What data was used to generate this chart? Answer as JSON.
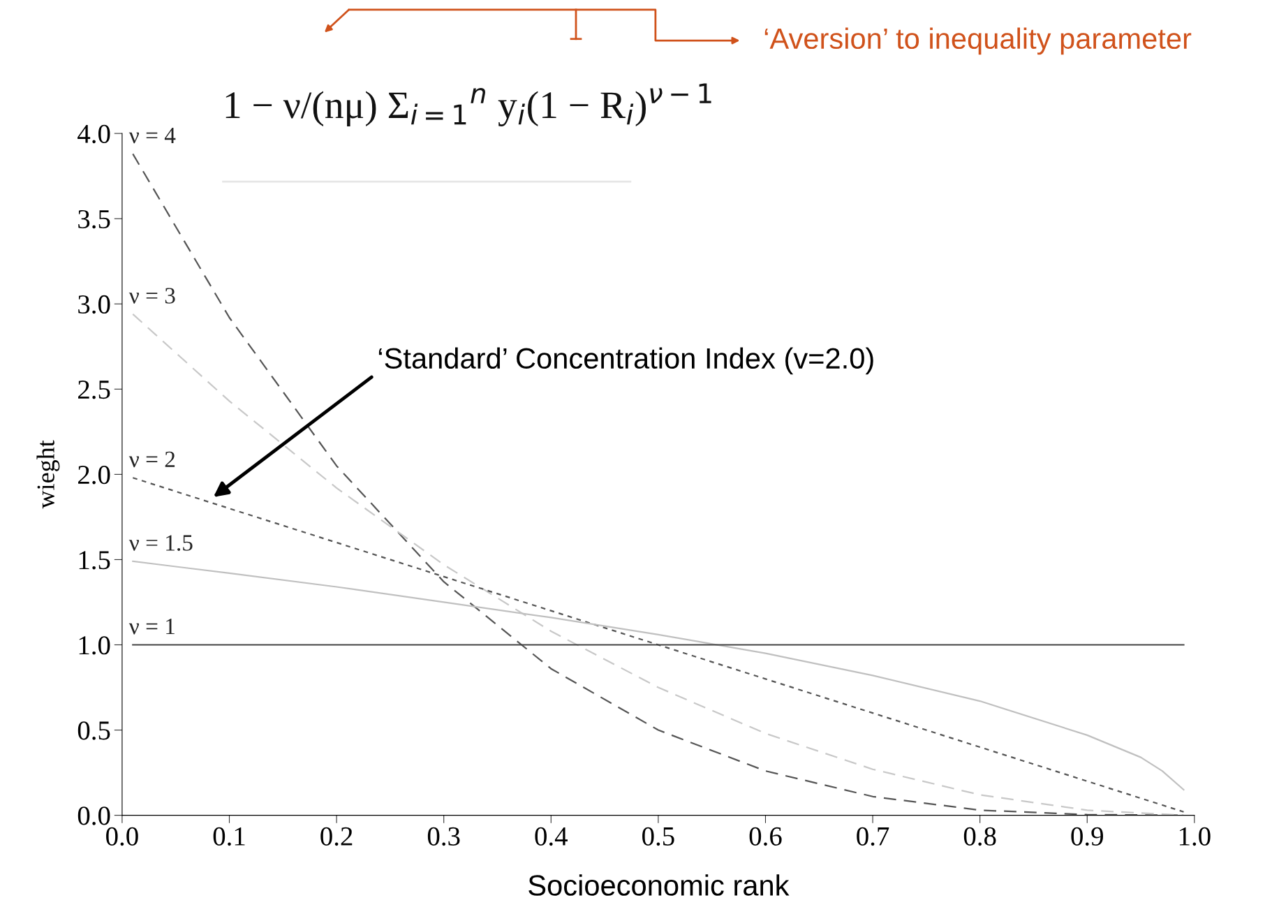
{
  "chart_data": {
    "type": "line",
    "xlabel": "Socioeconomic rank",
    "ylabel": "wieght",
    "xlim": [
      0.0,
      1.0
    ],
    "ylim": [
      0.0,
      4.0
    ],
    "xticks": [
      {
        "value": 0,
        "label": "0.0"
      },
      0.1,
      0.2,
      0.3,
      0.4,
      0.5,
      0.6,
      0.7,
      0.8,
      0.9,
      {
        "value": 1,
        "label": "1.0"
      }
    ],
    "yticks": [
      {
        "value": 0,
        "label": "0.0"
      },
      0.5,
      {
        "value": 1,
        "label": "1.0"
      },
      1.5,
      {
        "value": 2,
        "label": "2.0"
      },
      2.5,
      {
        "value": 3,
        "label": "3.0"
      },
      3.5,
      {
        "value": 4,
        "label": "4.0"
      }
    ],
    "grid": false,
    "legend": false,
    "marker": "none",
    "series": [
      {
        "name": "ν = 4",
        "color": "#555555",
        "line_style": "dashed",
        "x": [
          0.01,
          0.1,
          0.2,
          0.3,
          0.4,
          0.5,
          0.6,
          0.7,
          0.8,
          0.9,
          0.99
        ],
        "values": [
          3.88,
          2.92,
          2.05,
          1.37,
          0.86,
          0.5,
          0.26,
          0.11,
          0.03,
          0.004,
          0.0
        ]
      },
      {
        "name": "ν = 3",
        "color": "#c8c8c8",
        "line_style": "dashed",
        "x": [
          0.01,
          0.1,
          0.2,
          0.3,
          0.4,
          0.5,
          0.6,
          0.7,
          0.8,
          0.9,
          0.99
        ],
        "values": [
          2.94,
          2.43,
          1.92,
          1.47,
          1.08,
          0.75,
          0.48,
          0.27,
          0.12,
          0.03,
          0.0
        ]
      },
      {
        "name": "ν = 2",
        "color": "#555555",
        "line_style": "dotted",
        "x": [
          0.01,
          0.1,
          0.2,
          0.3,
          0.4,
          0.5,
          0.6,
          0.7,
          0.8,
          0.9,
          0.99
        ],
        "values": [
          1.98,
          1.8,
          1.6,
          1.4,
          1.2,
          1.0,
          0.8,
          0.6,
          0.4,
          0.2,
          0.02
        ]
      },
      {
        "name": "ν = 1.5",
        "color": "#c0c0c0",
        "line_style": "solid",
        "x": [
          0.01,
          0.1,
          0.2,
          0.3,
          0.4,
          0.5,
          0.6,
          0.7,
          0.8,
          0.9,
          0.95,
          0.97,
          0.99
        ],
        "values": [
          1.49,
          1.42,
          1.34,
          1.25,
          1.16,
          1.06,
          0.95,
          0.82,
          0.67,
          0.47,
          0.34,
          0.26,
          0.15
        ]
      },
      {
        "name": "ν = 1",
        "color": "#444444",
        "line_style": "solid",
        "x": [
          0.01,
          0.99
        ],
        "values": [
          1.0,
          1.0
        ]
      }
    ],
    "annotations": [
      "1 − ν/(nμ) Σ$_{i=1}$$^{n}$ y$_{i}$(1 − R$_{i}$)$^{ν−1}$",
      "‘Aversion’ to inequality parameter",
      "‘Standard’ Concentration Index (v=2.0)"
    ]
  }
}
